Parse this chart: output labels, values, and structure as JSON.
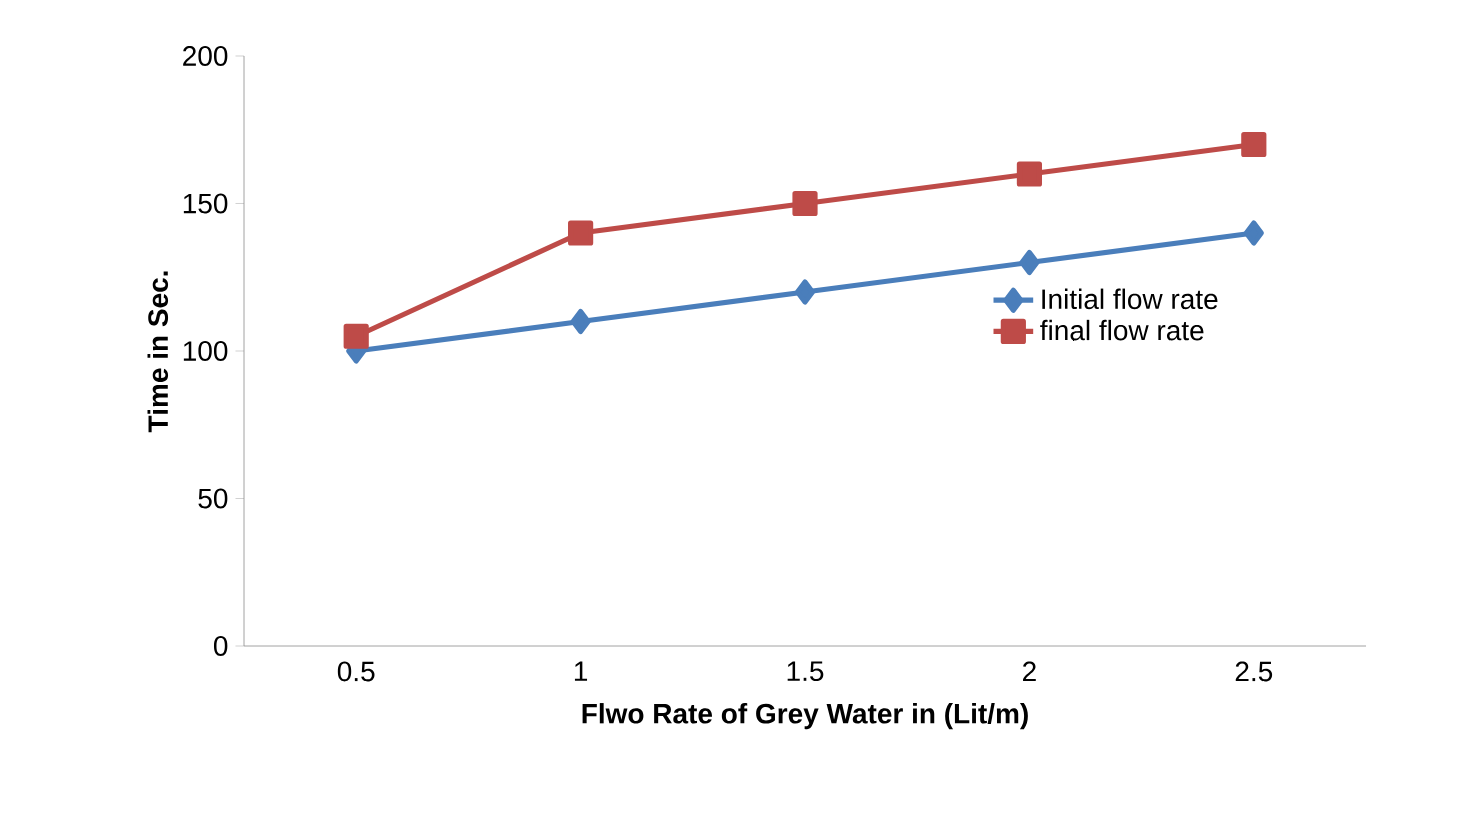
{
  "chart_data": {
    "type": "line",
    "xlabel": "Flwo Rate of Grey Water in (Lit/m)",
    "ylabel": "Time in Sec.",
    "categories": [
      "0.5",
      "1",
      "1.5",
      "2",
      "2.5"
    ],
    "series": [
      {
        "name": "Initial flow rate",
        "color": "#4a7ebb",
        "marker": "diamond",
        "values": [
          100,
          110,
          120,
          130,
          140
        ]
      },
      {
        "name": "final flow rate",
        "color": "#be4b48",
        "marker": "square",
        "values": [
          105,
          140,
          150,
          160,
          170
        ]
      }
    ],
    "ylim": [
      0,
      200
    ],
    "yticks": [
      0,
      50,
      100,
      150,
      200
    ],
    "legend": "right",
    "grid": false,
    "line_style": "solid"
  }
}
